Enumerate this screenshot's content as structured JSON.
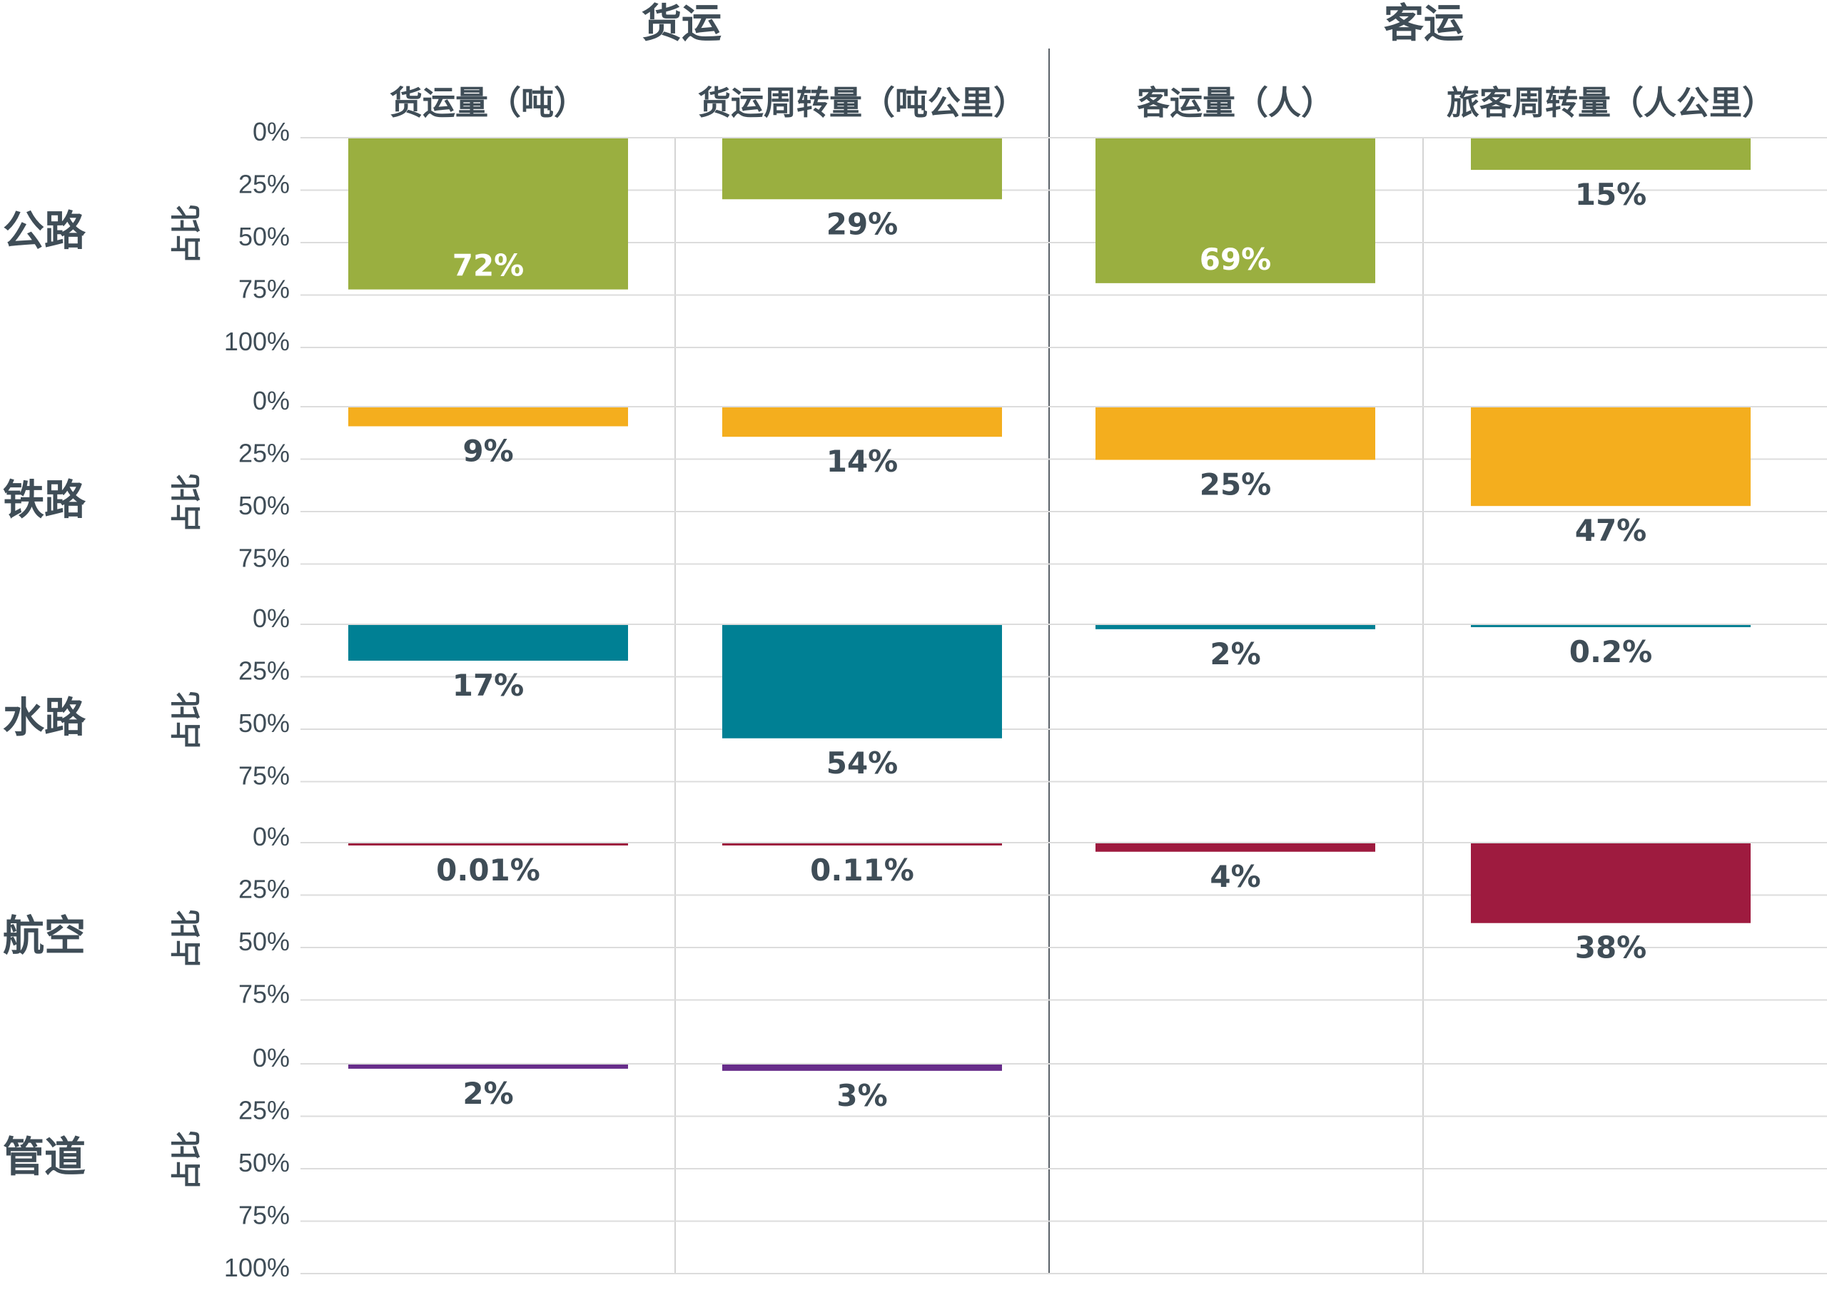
{
  "chart_data": {
    "type": "bar",
    "orientation": "vertical-downward",
    "groups": [
      {
        "title": "货运",
        "columns": [
          0,
          1
        ]
      },
      {
        "title": "客运",
        "columns": [
          2,
          3
        ]
      }
    ],
    "columns": [
      "货运量（吨）",
      "货运周转量（吨公里）",
      "客运量（人）",
      "旅客周转量（人公里）"
    ],
    "ylabel": "占比",
    "ylim": [
      0,
      100
    ],
    "rows": [
      {
        "name": "公路",
        "color": "#9aaf40",
        "ticks": [
          "0%",
          "25%",
          "50%",
          "75%",
          "100%"
        ],
        "values": [
          72,
          29,
          69,
          15
        ],
        "labels": [
          "72%",
          "29%",
          "69%",
          "15%"
        ],
        "label_inside": [
          true,
          false,
          true,
          false
        ]
      },
      {
        "name": "铁路",
        "color": "#f4ae1e",
        "ticks": [
          "0%",
          "25%",
          "50%",
          "75%"
        ],
        "values": [
          9,
          14,
          25,
          47
        ],
        "labels": [
          "9%",
          "14%",
          "25%",
          "47%"
        ],
        "label_inside": [
          false,
          false,
          false,
          false
        ]
      },
      {
        "name": "水路",
        "color": "#008094",
        "ticks": [
          "0%",
          "25%",
          "50%",
          "75%"
        ],
        "values": [
          17,
          54,
          2,
          0.2
        ],
        "labels": [
          "17%",
          "54%",
          "2%",
          "0.2%"
        ],
        "label_inside": [
          false,
          false,
          false,
          false
        ]
      },
      {
        "name": "航空",
        "color": "#9e1b3f",
        "ticks": [
          "0%",
          "25%",
          "50%",
          "75%"
        ],
        "values": [
          0.01,
          0.11,
          4,
          38
        ],
        "labels": [
          "0.01%",
          "0.11%",
          "4%",
          "38%"
        ],
        "label_inside": [
          false,
          false,
          false,
          false
        ]
      },
      {
        "name": "管道",
        "color": "#672d8a",
        "ticks": [
          "0%",
          "25%",
          "50%",
          "75%",
          "100%"
        ],
        "values": [
          2,
          3,
          null,
          null
        ],
        "labels": [
          "2%",
          "3%",
          null,
          null
        ],
        "label_inside": [
          false,
          false,
          false,
          false
        ]
      }
    ]
  }
}
